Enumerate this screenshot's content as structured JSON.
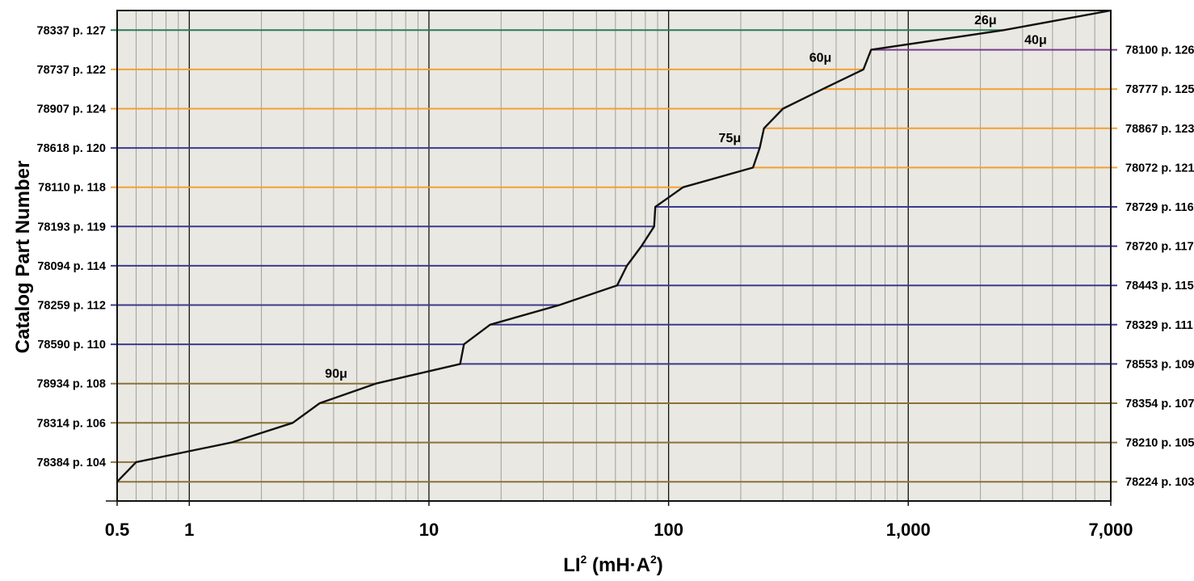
{
  "chart_data": {
    "type": "line",
    "xscale": "log",
    "xlim": [
      0.5,
      7000
    ],
    "x_ticks": [
      0.5,
      1,
      10,
      100,
      1000,
      7000
    ],
    "x_tick_labels": [
      "0.5",
      "1",
      "10",
      "100",
      "1,000",
      "7,000"
    ],
    "xlabel": "LI",
    "xlabel_sup": "2",
    "xlabel_tail": " (mH·A",
    "xlabel_sup2": "2",
    "xlabel_end": ")",
    "ylabel": "Catalog Part Number",
    "grid": true,
    "colors": {
      "plot_bg": "#e9e8e2",
      "grid_minor": "#a0a09a",
      "grid_major": "#111111",
      "curve": "#111111",
      "green": "#2a7b5a",
      "orange": "#f5a030",
      "purple": "#7b3b8e",
      "blue": "#3a3a8e",
      "olive": "#8a7238"
    },
    "rows": [
      {
        "level": 1,
        "label": "78337 p. 127",
        "side": "left",
        "color": "green",
        "x_start": 0.5,
        "x_end": 2500
      },
      {
        "level": 2,
        "label": "78100 p. 126",
        "side": "right",
        "color": "purple",
        "x_start": 700,
        "x_end": 7000
      },
      {
        "level": 3,
        "label": "78737 p. 122",
        "side": "left",
        "color": "orange",
        "x_start": 0.5,
        "x_end": 650
      },
      {
        "level": 4,
        "label": "78777 p. 125",
        "side": "right",
        "color": "orange",
        "x_start": 440,
        "x_end": 7000
      },
      {
        "level": 5,
        "label": "78907 p. 124",
        "side": "left",
        "color": "orange",
        "x_start": 0.5,
        "x_end": 300
      },
      {
        "level": 6,
        "label": "78867 p. 123",
        "side": "right",
        "color": "orange",
        "x_start": 250,
        "x_end": 7000
      },
      {
        "level": 7,
        "label": "78618 p. 120",
        "side": "left",
        "color": "blue",
        "x_start": 0.5,
        "x_end": 240
      },
      {
        "level": 8,
        "label": "78072 p. 121",
        "side": "right",
        "color": "orange",
        "x_start": 225,
        "x_end": 7000
      },
      {
        "level": 9,
        "label": "78110 p. 118",
        "side": "left",
        "color": "orange",
        "x_start": 0.5,
        "x_end": 115
      },
      {
        "level": 10,
        "label": "78729 p. 116",
        "side": "right",
        "color": "blue",
        "x_start": 88,
        "x_end": 7000
      },
      {
        "level": 11,
        "label": "78193 p. 119",
        "side": "left",
        "color": "blue",
        "x_start": 0.5,
        "x_end": 87
      },
      {
        "level": 12,
        "label": "78720 p. 117",
        "side": "right",
        "color": "blue",
        "x_start": 77,
        "x_end": 7000
      },
      {
        "level": 13,
        "label": "78094 p. 114",
        "side": "left",
        "color": "blue",
        "x_start": 0.5,
        "x_end": 67
      },
      {
        "level": 14,
        "label": "78443 p. 115",
        "side": "right",
        "color": "blue",
        "x_start": 61,
        "x_end": 7000
      },
      {
        "level": 15,
        "label": "78259 p. 112",
        "side": "left",
        "color": "blue",
        "x_start": 0.5,
        "x_end": 35
      },
      {
        "level": 16,
        "label": "78329 p. 111",
        "side": "right",
        "color": "blue",
        "x_start": 18,
        "x_end": 7000
      },
      {
        "level": 17,
        "label": "78590 p. 110",
        "side": "left",
        "color": "blue",
        "x_start": 0.5,
        "x_end": 14
      },
      {
        "level": 18,
        "label": "78553 p. 109",
        "side": "right",
        "color": "blue",
        "x_start": 13.5,
        "x_end": 7000
      },
      {
        "level": 19,
        "label": "78934 p. 108",
        "side": "left",
        "color": "olive",
        "x_start": 0.5,
        "x_end": 6
      },
      {
        "level": 20,
        "label": "78354 p. 107",
        "side": "right",
        "color": "olive",
        "x_start": 3.5,
        "x_end": 7000
      },
      {
        "level": 21,
        "label": "78314 p. 106",
        "side": "left",
        "color": "olive",
        "x_start": 0.5,
        "x_end": 2.7
      },
      {
        "level": 22,
        "label": "78210 p. 105",
        "side": "right",
        "color": "olive",
        "x_start": 1.5,
        "x_end": 7000
      },
      {
        "level": 23,
        "label": "78384 p. 104",
        "side": "left",
        "color": "olive",
        "x_start": 0.5,
        "x_end": 0.6
      },
      {
        "level": 24,
        "label": "78224 p. 103",
        "side": "right",
        "color": "olive",
        "x_start": 0.5,
        "x_end": 7000
      }
    ],
    "curve": [
      [
        0.5,
        24
      ],
      [
        0.6,
        23
      ],
      [
        1.5,
        22
      ],
      [
        2.7,
        21
      ],
      [
        3.5,
        20
      ],
      [
        6,
        19
      ],
      [
        13.5,
        18
      ],
      [
        14,
        17
      ],
      [
        18,
        16
      ],
      [
        35,
        15
      ],
      [
        61,
        14
      ],
      [
        67,
        13
      ],
      [
        77,
        12
      ],
      [
        87,
        11
      ],
      [
        88,
        10
      ],
      [
        115,
        9
      ],
      [
        225,
        8
      ],
      [
        240,
        7
      ],
      [
        250,
        6
      ],
      [
        300,
        5
      ],
      [
        440,
        4
      ],
      [
        650,
        3
      ],
      [
        700,
        2
      ],
      [
        2500,
        1
      ],
      [
        7000,
        0
      ]
    ],
    "annotations": [
      {
        "text": "26μ",
        "x": 2100,
        "level": 0.5
      },
      {
        "text": "40μ",
        "x": 3400,
        "level": 1.5
      },
      {
        "text": "60μ",
        "x": 430,
        "level": 2.4
      },
      {
        "text": "75μ",
        "x": 180,
        "level": 6.5
      },
      {
        "text": "90μ",
        "x": 4.1,
        "level": 18.5
      }
    ]
  }
}
